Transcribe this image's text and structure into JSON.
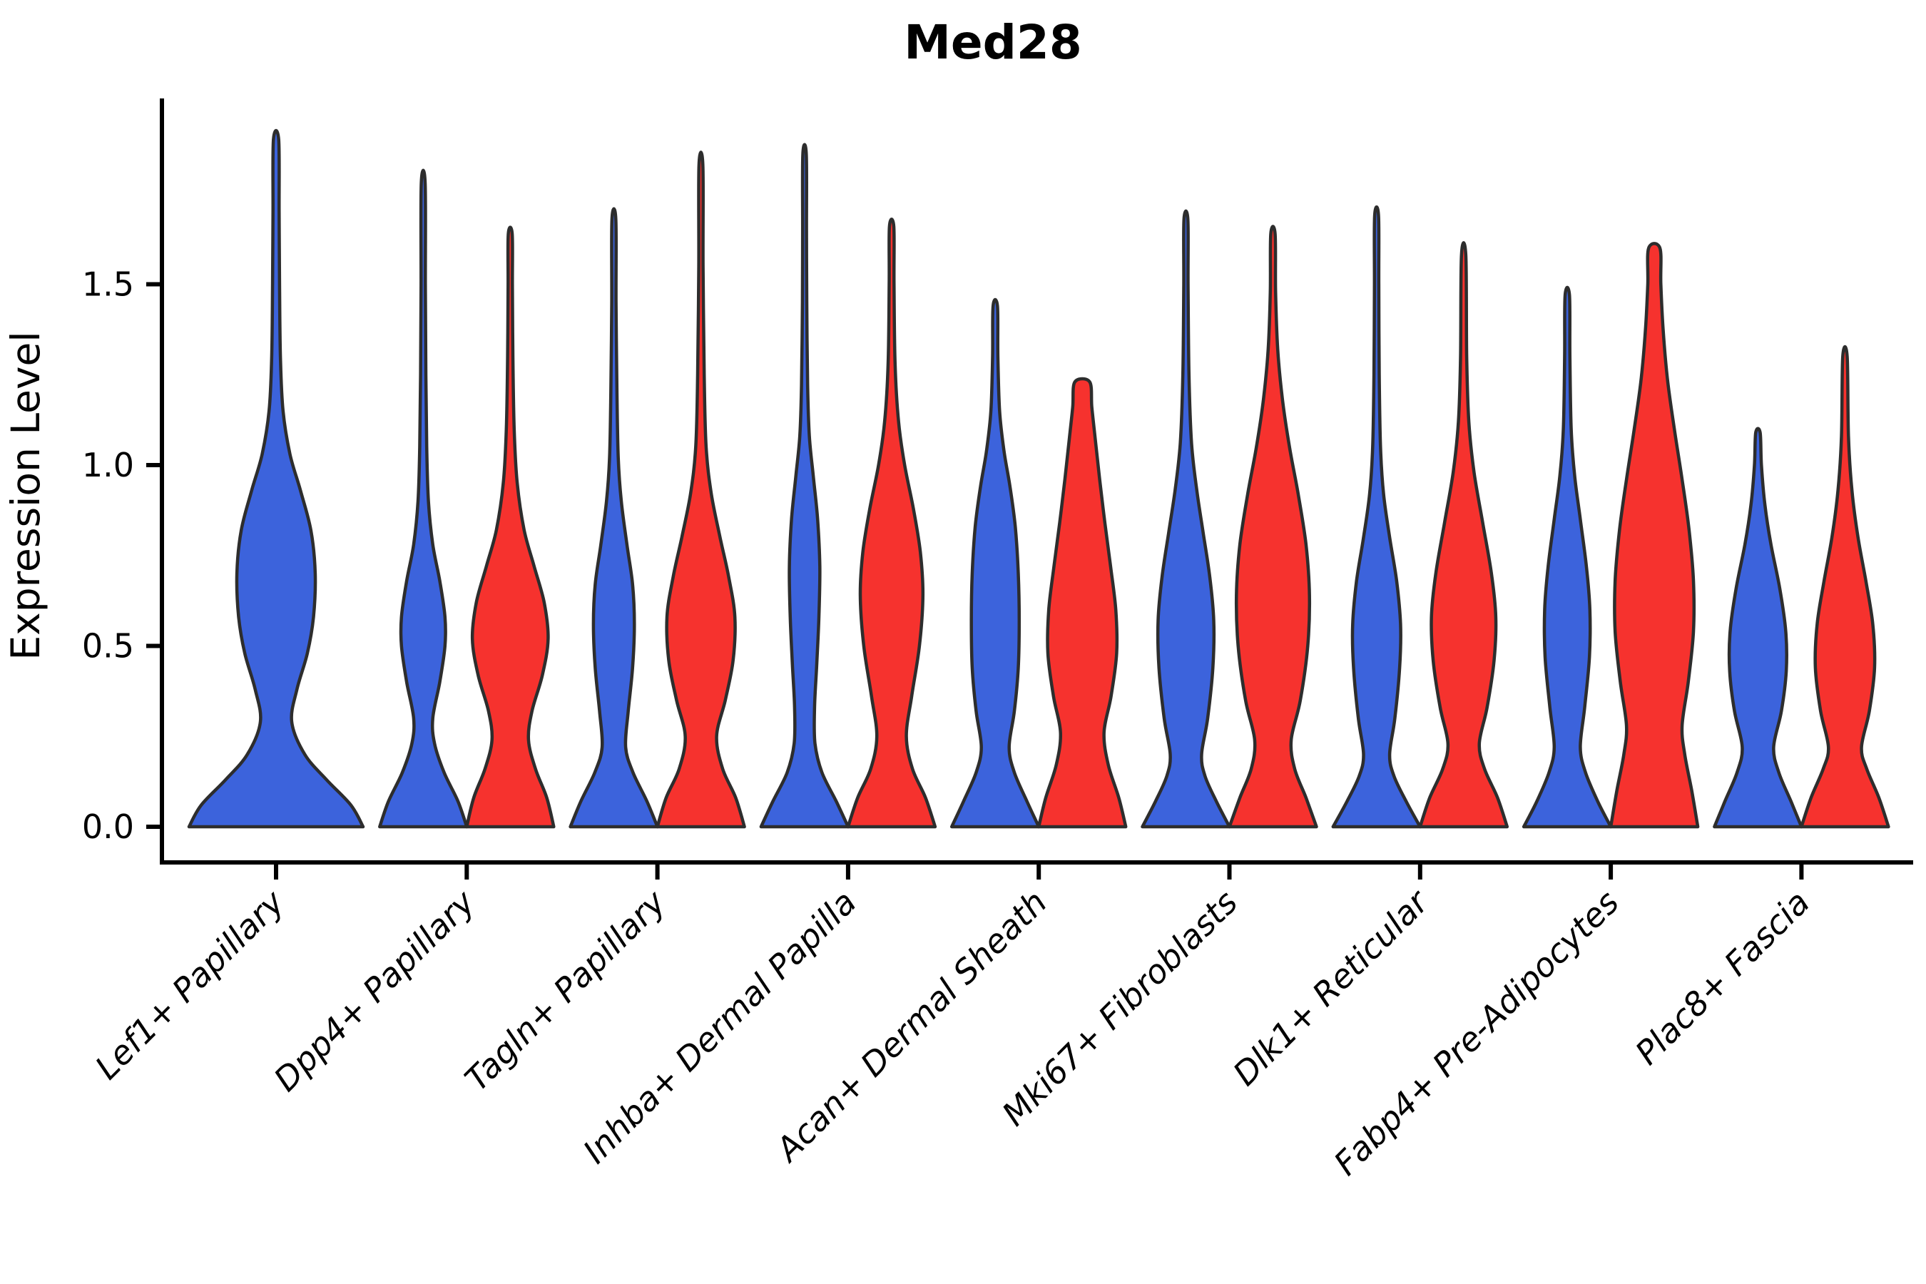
{
  "title": "Med28",
  "axes": {
    "y_label": "Expression Level",
    "y_tick_labels": [
      "0.0",
      "0.5",
      "1.0",
      "1.5"
    ]
  },
  "chart_data": {
    "type": "violin",
    "title": "Med28",
    "xlabel": "",
    "ylabel": "Expression Level",
    "grid": false,
    "legend": "none",
    "ylim": [
      -0.1,
      2.0
    ],
    "yticks": [
      0,
      0.5,
      1.0,
      1.5
    ],
    "ytick_labels": [
      "0.0",
      "0.5",
      "1.0",
      "1.5"
    ],
    "categories": [
      "Lef1+ Papillary",
      "Dpp4+ Papillary",
      "Tagln+ Papillary",
      "Inhba+ Dermal Papilla",
      "Acan+ Dermal Sheath",
      "Mki67+ Fibroblasts",
      "Dlk1+ Reticular",
      "Fabp4+ Pre-Adipocytes",
      "Plac8+ Fascia"
    ],
    "colors": {
      "blue": "#3C63DC",
      "red": "#F6322E",
      "outline": "#2d2d2d"
    },
    "series": [
      {
        "name": "blue-group",
        "color_key": "blue",
        "max_expression": [
          1.9,
          1.78,
          1.68,
          1.86,
          1.44,
          1.68,
          1.69,
          1.47,
          1.09
        ]
      },
      {
        "name": "red-group",
        "color_key": "red",
        "max_expression": [
          null,
          1.64,
          1.83,
          1.66,
          1.23,
          1.64,
          1.58,
          1.6,
          1.3
        ]
      }
    ],
    "violins": [
      {
        "category_index": 0,
        "category": "Lef1+ Papillary",
        "hue": "blue",
        "position": "center",
        "width": 2.0,
        "tip": 1.9,
        "flat_top": false,
        "profile": [
          [
            0,
            1.0
          ],
          [
            0.06,
            0.86
          ],
          [
            0.13,
            0.58
          ],
          [
            0.2,
            0.33
          ],
          [
            0.29,
            0.18
          ],
          [
            0.38,
            0.24
          ],
          [
            0.48,
            0.36
          ],
          [
            0.58,
            0.43
          ],
          [
            0.7,
            0.45
          ],
          [
            0.82,
            0.4
          ],
          [
            0.93,
            0.28
          ],
          [
            1.03,
            0.16
          ],
          [
            1.15,
            0.08
          ],
          [
            1.3,
            0.05
          ],
          [
            1.5,
            0.04
          ],
          [
            1.7,
            0.035
          ],
          [
            1.9,
            0.03
          ]
        ]
      },
      {
        "category_index": 1,
        "category": "Dpp4+ Papillary",
        "hue": "blue",
        "position": "left",
        "width": 1.0,
        "tip": 1.78,
        "flat_top": false,
        "profile": [
          [
            0,
            1.0
          ],
          [
            0.07,
            0.8
          ],
          [
            0.15,
            0.48
          ],
          [
            0.23,
            0.26
          ],
          [
            0.3,
            0.22
          ],
          [
            0.4,
            0.38
          ],
          [
            0.5,
            0.5
          ],
          [
            0.58,
            0.5
          ],
          [
            0.68,
            0.38
          ],
          [
            0.78,
            0.22
          ],
          [
            0.9,
            0.12
          ],
          [
            1.05,
            0.08
          ],
          [
            1.25,
            0.06
          ],
          [
            1.5,
            0.05
          ],
          [
            1.78,
            0.045
          ]
        ]
      },
      {
        "category_index": 1,
        "category": "Dpp4+ Papillary",
        "hue": "red",
        "position": "right",
        "width": 1.0,
        "tip": 1.64,
        "flat_top": false,
        "profile": [
          [
            0,
            1.0
          ],
          [
            0.08,
            0.84
          ],
          [
            0.16,
            0.58
          ],
          [
            0.24,
            0.42
          ],
          [
            0.32,
            0.5
          ],
          [
            0.42,
            0.74
          ],
          [
            0.52,
            0.87
          ],
          [
            0.62,
            0.78
          ],
          [
            0.72,
            0.55
          ],
          [
            0.82,
            0.32
          ],
          [
            0.95,
            0.16
          ],
          [
            1.1,
            0.09
          ],
          [
            1.3,
            0.06
          ],
          [
            1.5,
            0.05
          ],
          [
            1.64,
            0.045
          ]
        ]
      },
      {
        "category_index": 2,
        "category": "Tagln+ Papillary",
        "hue": "blue",
        "position": "left",
        "width": 1.0,
        "tip": 1.68,
        "flat_top": false,
        "profile": [
          [
            0,
            1.0
          ],
          [
            0.07,
            0.76
          ],
          [
            0.15,
            0.44
          ],
          [
            0.22,
            0.27
          ],
          [
            0.32,
            0.33
          ],
          [
            0.44,
            0.43
          ],
          [
            0.56,
            0.47
          ],
          [
            0.67,
            0.43
          ],
          [
            0.78,
            0.3
          ],
          [
            0.9,
            0.17
          ],
          [
            1.02,
            0.1
          ],
          [
            1.2,
            0.07
          ],
          [
            1.45,
            0.05
          ],
          [
            1.68,
            0.045
          ]
        ]
      },
      {
        "category_index": 2,
        "category": "Tagln+ Papillary",
        "hue": "red",
        "position": "right",
        "width": 1.0,
        "tip": 1.83,
        "flat_top": false,
        "profile": [
          [
            0,
            1.0
          ],
          [
            0.08,
            0.8
          ],
          [
            0.16,
            0.5
          ],
          [
            0.25,
            0.36
          ],
          [
            0.35,
            0.56
          ],
          [
            0.46,
            0.74
          ],
          [
            0.58,
            0.78
          ],
          [
            0.69,
            0.64
          ],
          [
            0.8,
            0.44
          ],
          [
            0.92,
            0.24
          ],
          [
            1.05,
            0.12
          ],
          [
            1.25,
            0.075
          ],
          [
            1.55,
            0.05
          ],
          [
            1.83,
            0.045
          ]
        ]
      },
      {
        "category_index": 3,
        "category": "Inhba+ Dermal Papilla",
        "hue": "blue",
        "position": "left",
        "width": 1.0,
        "tip": 1.86,
        "flat_top": false,
        "profile": [
          [
            0,
            1.0
          ],
          [
            0.07,
            0.73
          ],
          [
            0.15,
            0.4
          ],
          [
            0.23,
            0.24
          ],
          [
            0.33,
            0.23
          ],
          [
            0.45,
            0.28
          ],
          [
            0.58,
            0.33
          ],
          [
            0.72,
            0.35
          ],
          [
            0.85,
            0.3
          ],
          [
            0.97,
            0.2
          ],
          [
            1.08,
            0.11
          ],
          [
            1.22,
            0.07
          ],
          [
            1.45,
            0.05
          ],
          [
            1.65,
            0.045
          ],
          [
            1.86,
            0.04
          ]
        ]
      },
      {
        "category_index": 3,
        "category": "Inhba+ Dermal Papilla",
        "hue": "red",
        "position": "right",
        "width": 1.0,
        "tip": 1.66,
        "flat_top": false,
        "profile": [
          [
            0,
            1.0
          ],
          [
            0.08,
            0.78
          ],
          [
            0.16,
            0.48
          ],
          [
            0.25,
            0.34
          ],
          [
            0.36,
            0.46
          ],
          [
            0.5,
            0.64
          ],
          [
            0.64,
            0.72
          ],
          [
            0.76,
            0.66
          ],
          [
            0.88,
            0.5
          ],
          [
            1.0,
            0.3
          ],
          [
            1.12,
            0.16
          ],
          [
            1.28,
            0.08
          ],
          [
            1.5,
            0.055
          ],
          [
            1.66,
            0.05
          ]
        ]
      },
      {
        "category_index": 4,
        "category": "Acan+ Dermal Sheath",
        "hue": "blue",
        "position": "left",
        "width": 1.0,
        "tip": 1.44,
        "flat_top": false,
        "profile": [
          [
            0,
            1.0
          ],
          [
            0.07,
            0.73
          ],
          [
            0.15,
            0.44
          ],
          [
            0.22,
            0.32
          ],
          [
            0.32,
            0.44
          ],
          [
            0.44,
            0.53
          ],
          [
            0.57,
            0.55
          ],
          [
            0.7,
            0.53
          ],
          [
            0.83,
            0.46
          ],
          [
            0.94,
            0.34
          ],
          [
            1.04,
            0.2
          ],
          [
            1.15,
            0.1
          ],
          [
            1.3,
            0.06
          ],
          [
            1.44,
            0.05
          ]
        ]
      },
      {
        "category_index": 4,
        "category": "Acan+ Dermal Sheath",
        "hue": "red",
        "position": "right",
        "width": 1.0,
        "tip": 1.23,
        "flat_top": true,
        "profile": [
          [
            0,
            1.0
          ],
          [
            0.08,
            0.84
          ],
          [
            0.17,
            0.6
          ],
          [
            0.26,
            0.5
          ],
          [
            0.36,
            0.66
          ],
          [
            0.48,
            0.79
          ],
          [
            0.6,
            0.77
          ],
          [
            0.72,
            0.65
          ],
          [
            0.84,
            0.52
          ],
          [
            0.96,
            0.4
          ],
          [
            1.07,
            0.3
          ],
          [
            1.16,
            0.22
          ],
          [
            1.23,
            0.17
          ]
        ]
      },
      {
        "category_index": 5,
        "category": "Mki67+ Fibroblasts",
        "hue": "blue",
        "position": "left",
        "width": 1.0,
        "tip": 1.68,
        "flat_top": false,
        "profile": [
          [
            0,
            1.0
          ],
          [
            0.07,
            0.7
          ],
          [
            0.14,
            0.44
          ],
          [
            0.2,
            0.36
          ],
          [
            0.3,
            0.5
          ],
          [
            0.44,
            0.62
          ],
          [
            0.57,
            0.64
          ],
          [
            0.69,
            0.55
          ],
          [
            0.81,
            0.4
          ],
          [
            0.93,
            0.25
          ],
          [
            1.06,
            0.13
          ],
          [
            1.25,
            0.07
          ],
          [
            1.5,
            0.05
          ],
          [
            1.68,
            0.045
          ]
        ]
      },
      {
        "category_index": 5,
        "category": "Mki67+ Fibroblasts",
        "hue": "red",
        "position": "right",
        "width": 1.0,
        "tip": 1.64,
        "flat_top": false,
        "profile": [
          [
            0,
            1.0
          ],
          [
            0.08,
            0.76
          ],
          [
            0.16,
            0.5
          ],
          [
            0.24,
            0.42
          ],
          [
            0.35,
            0.63
          ],
          [
            0.5,
            0.8
          ],
          [
            0.64,
            0.84
          ],
          [
            0.78,
            0.76
          ],
          [
            0.92,
            0.58
          ],
          [
            1.05,
            0.38
          ],
          [
            1.18,
            0.22
          ],
          [
            1.32,
            0.11
          ],
          [
            1.48,
            0.06
          ],
          [
            1.64,
            0.05
          ]
        ]
      },
      {
        "category_index": 6,
        "category": "Dlk1+ Reticular",
        "hue": "blue",
        "position": "left",
        "width": 1.0,
        "tip": 1.69,
        "flat_top": false,
        "profile": [
          [
            0,
            1.0
          ],
          [
            0.07,
            0.68
          ],
          [
            0.14,
            0.4
          ],
          [
            0.2,
            0.3
          ],
          [
            0.3,
            0.42
          ],
          [
            0.44,
            0.53
          ],
          [
            0.56,
            0.55
          ],
          [
            0.68,
            0.46
          ],
          [
            0.8,
            0.3
          ],
          [
            0.92,
            0.16
          ],
          [
            1.05,
            0.09
          ],
          [
            1.25,
            0.06
          ],
          [
            1.5,
            0.05
          ],
          [
            1.69,
            0.045
          ]
        ]
      },
      {
        "category_index": 6,
        "category": "Dlk1+ Reticular",
        "hue": "red",
        "position": "right",
        "width": 1.0,
        "tip": 1.58,
        "flat_top": false,
        "profile": [
          [
            0,
            1.0
          ],
          [
            0.08,
            0.78
          ],
          [
            0.16,
            0.48
          ],
          [
            0.23,
            0.36
          ],
          [
            0.33,
            0.54
          ],
          [
            0.46,
            0.7
          ],
          [
            0.58,
            0.74
          ],
          [
            0.7,
            0.64
          ],
          [
            0.84,
            0.44
          ],
          [
            0.98,
            0.24
          ],
          [
            1.12,
            0.12
          ],
          [
            1.3,
            0.07
          ],
          [
            1.58,
            0.05
          ]
        ]
      },
      {
        "category_index": 7,
        "category": "Fabp4+ Pre-Adipocytes",
        "hue": "blue",
        "position": "left",
        "width": 1.0,
        "tip": 1.47,
        "flat_top": false,
        "profile": [
          [
            0,
            1.0
          ],
          [
            0.07,
            0.7
          ],
          [
            0.15,
            0.42
          ],
          [
            0.22,
            0.3
          ],
          [
            0.33,
            0.4
          ],
          [
            0.47,
            0.51
          ],
          [
            0.6,
            0.52
          ],
          [
            0.72,
            0.44
          ],
          [
            0.85,
            0.3
          ],
          [
            0.97,
            0.17
          ],
          [
            1.1,
            0.09
          ],
          [
            1.3,
            0.06
          ],
          [
            1.47,
            0.05
          ]
        ]
      },
      {
        "category_index": 7,
        "category": "Fabp4+ Pre-Adipocytes",
        "hue": "red",
        "position": "right",
        "width": 1.0,
        "tip": 1.6,
        "flat_top": true,
        "profile": [
          [
            0,
            1.0
          ],
          [
            0.1,
            0.86
          ],
          [
            0.2,
            0.7
          ],
          [
            0.28,
            0.64
          ],
          [
            0.4,
            0.78
          ],
          [
            0.54,
            0.9
          ],
          [
            0.68,
            0.9
          ],
          [
            0.82,
            0.8
          ],
          [
            0.96,
            0.64
          ],
          [
            1.1,
            0.46
          ],
          [
            1.24,
            0.3
          ],
          [
            1.38,
            0.2
          ],
          [
            1.5,
            0.15
          ],
          [
            1.6,
            0.13
          ]
        ]
      },
      {
        "category_index": 8,
        "category": "Plac8+ Fascia",
        "hue": "blue",
        "position": "left",
        "width": 1.0,
        "tip": 1.09,
        "flat_top": false,
        "profile": [
          [
            0,
            1.0
          ],
          [
            0.07,
            0.76
          ],
          [
            0.15,
            0.48
          ],
          [
            0.22,
            0.36
          ],
          [
            0.32,
            0.54
          ],
          [
            0.43,
            0.65
          ],
          [
            0.54,
            0.64
          ],
          [
            0.66,
            0.5
          ],
          [
            0.78,
            0.3
          ],
          [
            0.89,
            0.16
          ],
          [
            1.0,
            0.08
          ],
          [
            1.09,
            0.05
          ]
        ]
      },
      {
        "category_index": 8,
        "category": "Plac8+ Fascia",
        "hue": "red",
        "position": "right",
        "width": 1.0,
        "tip": 1.3,
        "flat_top": false,
        "profile": [
          [
            0,
            1.0
          ],
          [
            0.08,
            0.78
          ],
          [
            0.16,
            0.5
          ],
          [
            0.22,
            0.38
          ],
          [
            0.32,
            0.56
          ],
          [
            0.44,
            0.68
          ],
          [
            0.56,
            0.64
          ],
          [
            0.68,
            0.48
          ],
          [
            0.8,
            0.3
          ],
          [
            0.93,
            0.16
          ],
          [
            1.08,
            0.08
          ],
          [
            1.3,
            0.05
          ]
        ]
      }
    ]
  }
}
